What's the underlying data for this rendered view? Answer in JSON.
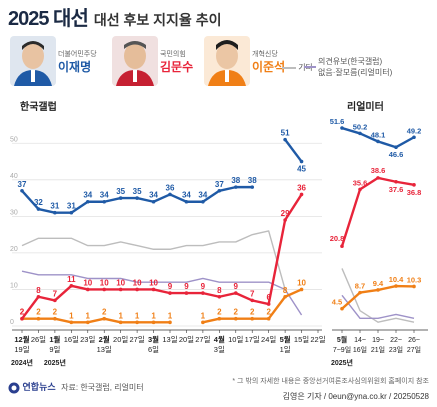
{
  "title": {
    "main": "2025 대선",
    "sub": "대선 후보 지지율 추이"
  },
  "candidates": [
    {
      "party": "더불어민주당",
      "name": "이재명",
      "color": "#1f5aa6"
    },
    {
      "party": "국민의힘",
      "name": "김문수",
      "color": "#e8243a"
    },
    {
      "party": "개혁신당",
      "name": "이준석",
      "color": "#f07f16"
    }
  ],
  "legend_other": {
    "label": "기타",
    "color": "#bdbdbd"
  },
  "legend_undecided": {
    "label1": "의견유보(한국갤럽)",
    "label2": "없음·잘모름(리얼미터)",
    "color": "#9e92c8"
  },
  "footer": {
    "note": "* 그 밖의 자세한 내용은 중앙선거여론조사심의위원회 홈페이지 참조",
    "credit": "김영은 기자 / 0eun@yna.co.kr / 20250528",
    "logo": "연합뉴스",
    "source": "자료: 한국갤럽, 리얼미터"
  },
  "chart_data": [
    {
      "type": "line",
      "source_label": "한국갤럽",
      "ylim": [
        0,
        55
      ],
      "yticks": [
        0,
        10,
        20,
        30,
        40,
        50
      ],
      "x": [
        "12월 19일",
        "2024년 26일",
        "1월 9일",
        "16일",
        "23일",
        "2월 13일",
        "20일",
        "27일",
        "3월 6일",
        "13일",
        "20일",
        "27일",
        "4월 3일",
        "10일",
        "17일",
        "24일",
        "5월 1일",
        "15일",
        "22일"
      ],
      "x_tick_rows": [
        {
          "top": "12월",
          "mid": "19일",
          "bot": "2024년"
        },
        {
          "top": "26일",
          "mid": "",
          "bot": ""
        },
        {
          "top": "1월",
          "mid": "9일",
          "bot": "2025년"
        },
        {
          "top": "16일",
          "mid": "",
          "bot": ""
        },
        {
          "top": "23일",
          "mid": "",
          "bot": ""
        },
        {
          "top": "2월",
          "mid": "13일",
          "bot": ""
        },
        {
          "top": "20일",
          "mid": "",
          "bot": ""
        },
        {
          "top": "27일",
          "mid": "",
          "bot": ""
        },
        {
          "top": "3월",
          "mid": "6일",
          "bot": ""
        },
        {
          "top": "13일",
          "mid": "",
          "bot": ""
        },
        {
          "top": "20일",
          "mid": "",
          "bot": ""
        },
        {
          "top": "27일",
          "mid": "",
          "bot": ""
        },
        {
          "top": "4월",
          "mid": "3일",
          "bot": ""
        },
        {
          "top": "10일",
          "mid": "",
          "bot": ""
        },
        {
          "top": "17일",
          "mid": "",
          "bot": ""
        },
        {
          "top": "24일",
          "mid": "",
          "bot": ""
        },
        {
          "top": "5월",
          "mid": "1일",
          "bot": ""
        },
        {
          "top": "15일",
          "mid": "",
          "bot": ""
        },
        {
          "top": "22일",
          "mid": "",
          "bot": ""
        }
      ],
      "series": [
        {
          "name": "이재명",
          "color": "#1f5aa6",
          "labels": true,
          "values": [
            37,
            32,
            31,
            31,
            34,
            34,
            35,
            35,
            34,
            36,
            34,
            34,
            37,
            38,
            38,
            null,
            51,
            45,
            null
          ]
        },
        {
          "name": "김문수",
          "color": "#e8243a",
          "labels": true,
          "values": [
            2,
            8,
            7,
            11,
            10,
            10,
            10,
            10,
            10,
            9,
            9,
            9,
            8,
            9,
            7,
            6,
            29,
            36,
            null
          ]
        },
        {
          "name": "이준석",
          "color": "#f07f16",
          "labels": true,
          "values": [
            2,
            2,
            2,
            1,
            1,
            2,
            1,
            1,
            1,
            1,
            null,
            1,
            2,
            2,
            2,
            2,
            8,
            10,
            null
          ]
        },
        {
          "name": "기타",
          "color": "#bdbdbd",
          "labels": false,
          "values": [
            22,
            24,
            24,
            24,
            22,
            22,
            23,
            22,
            21,
            21,
            22,
            22,
            23,
            23,
            25,
            26,
            10,
            null,
            null
          ]
        },
        {
          "name": "의견유보",
          "color": "#9e92c8",
          "labels": false,
          "values": [
            15,
            14,
            14,
            14,
            13,
            13,
            13,
            12,
            12,
            12,
            12,
            13,
            12,
            12,
            12,
            12,
            10,
            3,
            null
          ]
        }
      ]
    },
    {
      "type": "line",
      "source_label": "리얼미터",
      "x": [
        "5월 7~9일",
        "14~16일",
        "19~21일",
        "22~23일",
        "26~27일"
      ],
      "x_tick_rows": [
        {
          "top": "5월",
          "mid": "7~9일",
          "bot": "2025년"
        },
        {
          "top": "14~",
          "mid": "16일",
          "bot": ""
        },
        {
          "top": "19~",
          "mid": "21일",
          "bot": ""
        },
        {
          "top": "22~",
          "mid": "23일",
          "bot": ""
        },
        {
          "top": "26~",
          "mid": "27일",
          "bot": ""
        }
      ],
      "series": [
        {
          "name": "이재명",
          "color": "#1f5aa6",
          "values": [
            51.6,
            50.2,
            48.1,
            46.6,
            49.2
          ]
        },
        {
          "name": "김문수",
          "color": "#e8243a",
          "values": [
            20.8,
            35.6,
            38.6,
            37.6,
            36.8
          ]
        },
        {
          "name": "이준석",
          "color": "#f07f16",
          "values": [
            4.5,
            8.7,
            9.4,
            10.4,
            10.3
          ]
        },
        {
          "name": "기타",
          "color": "#bdbdbd",
          "values": [
            15,
            4,
            1,
            2,
            1
          ]
        },
        {
          "name": "없음·잘모름",
          "color": "#9e92c8",
          "values": [
            8,
            2,
            2,
            3,
            2
          ]
        }
      ]
    }
  ]
}
